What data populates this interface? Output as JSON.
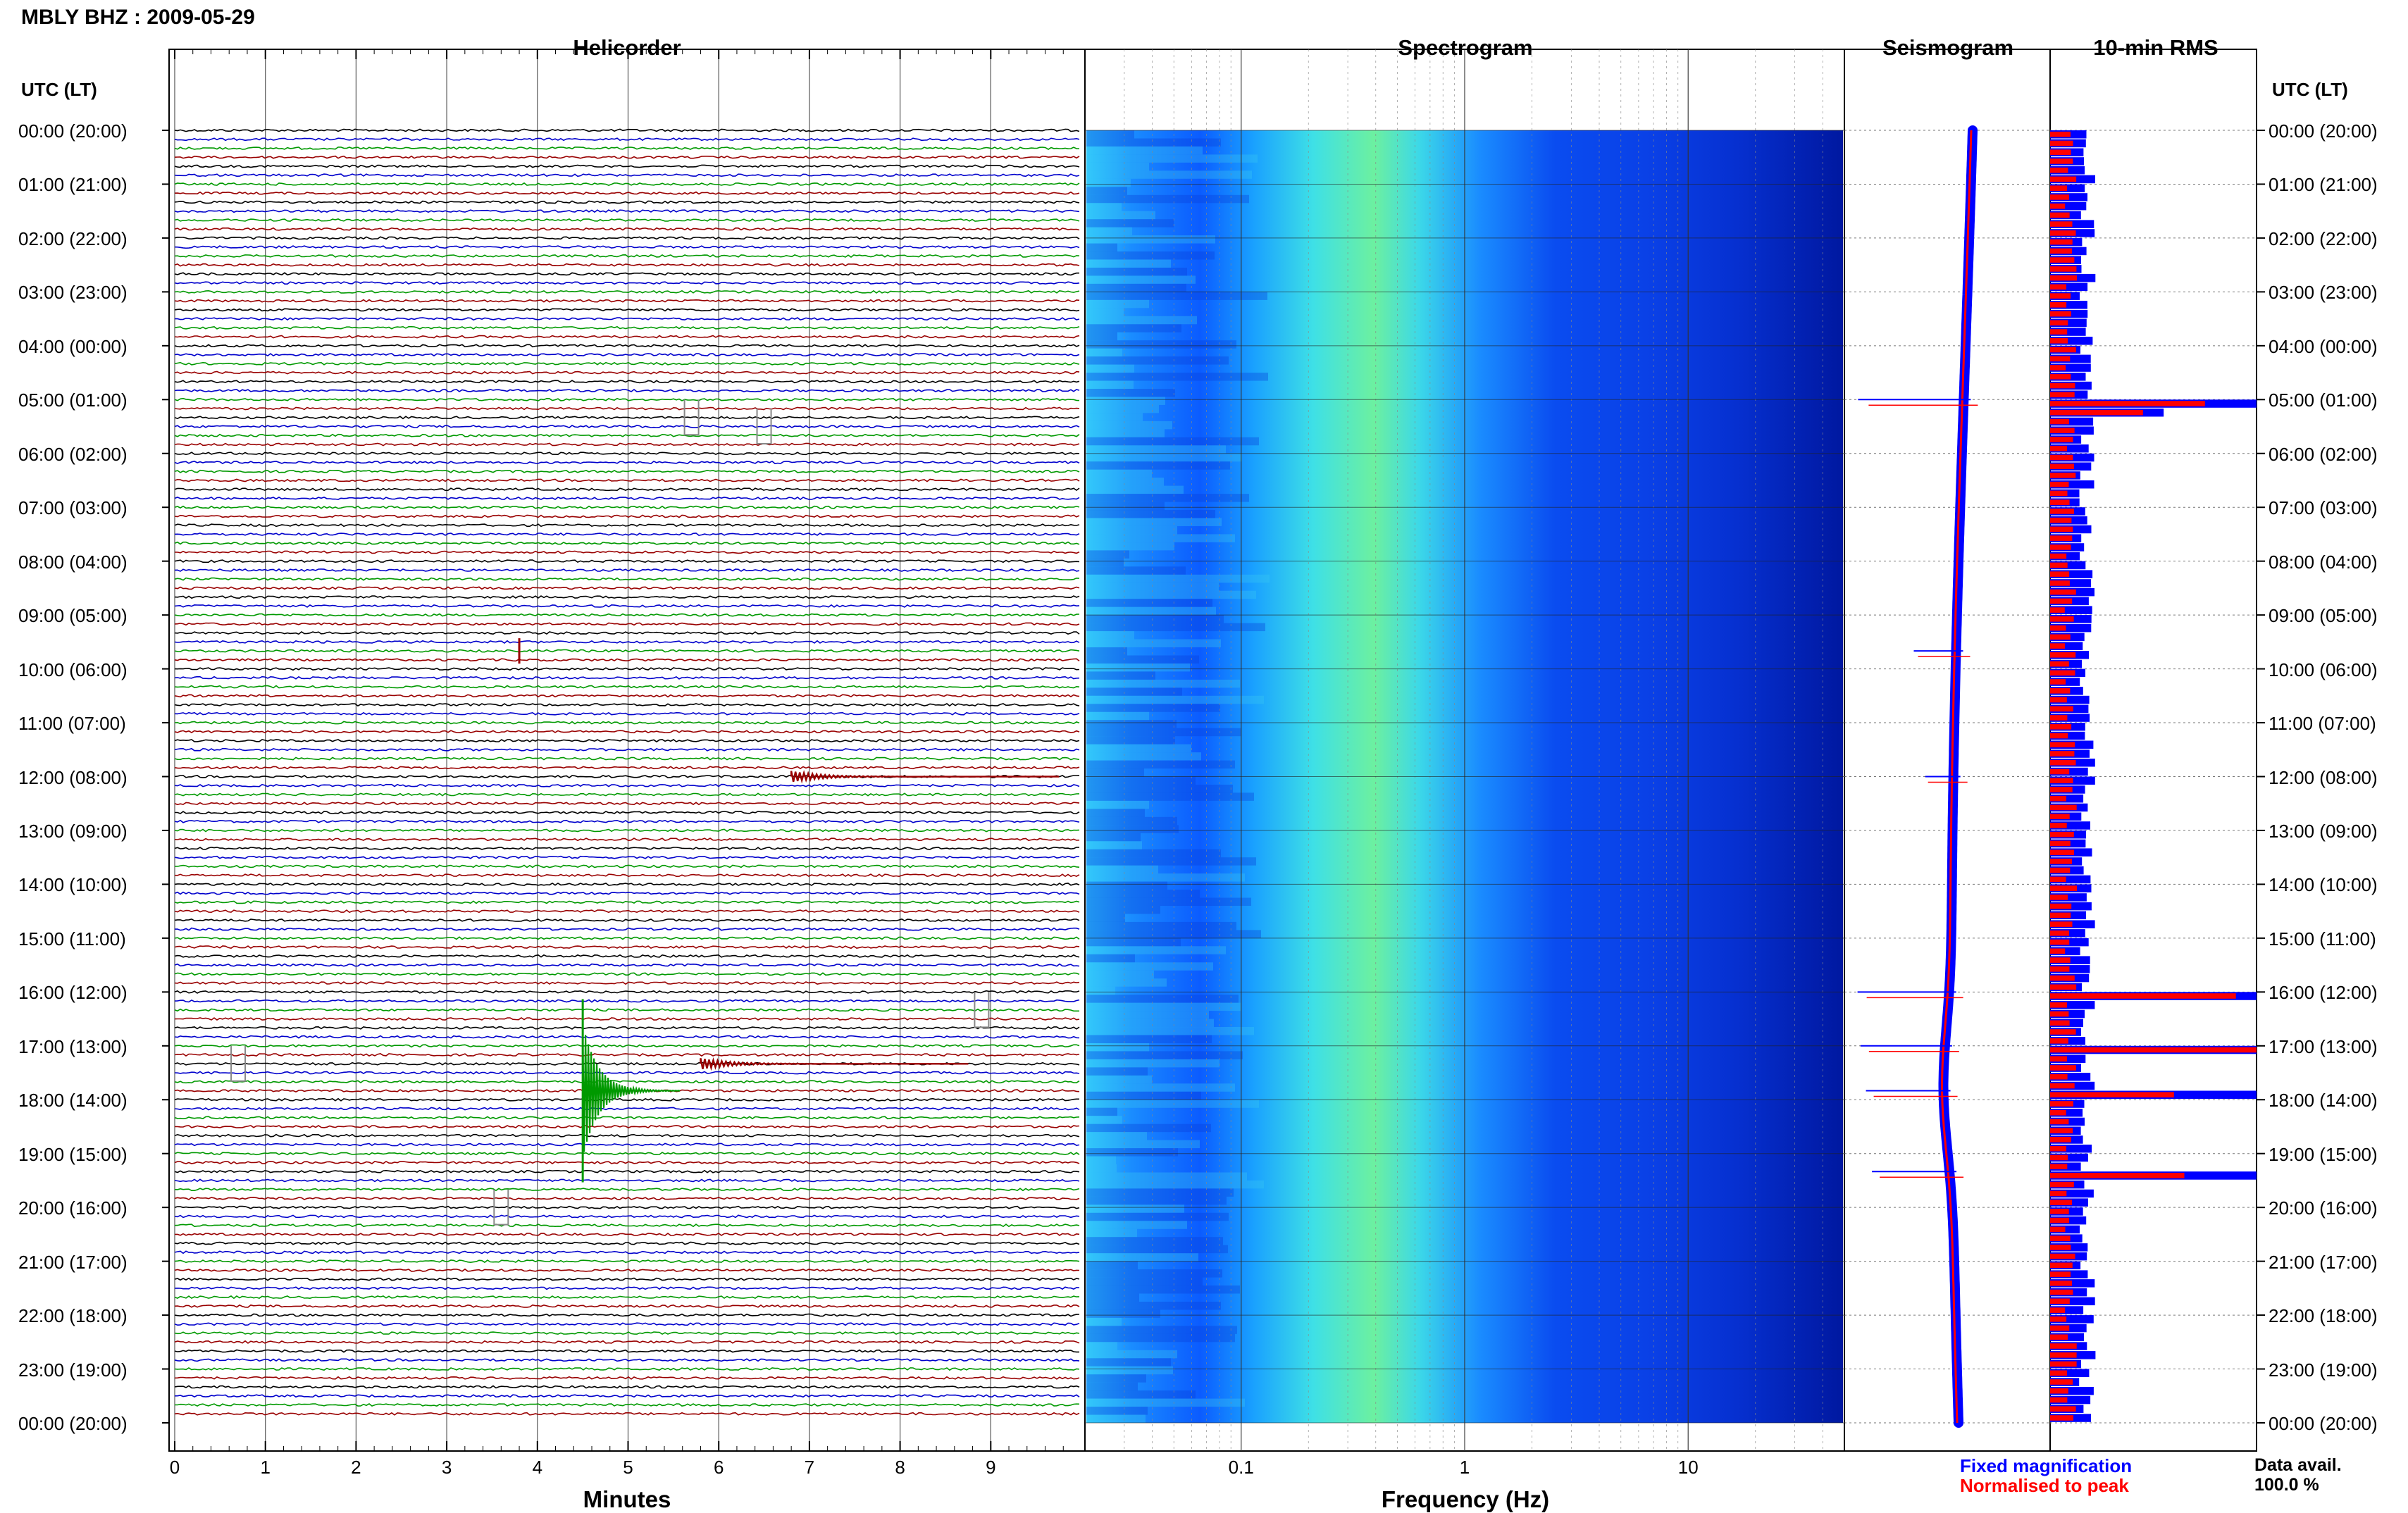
{
  "header": {
    "title": "MBLY BHZ : 2009-05-29"
  },
  "panels": {
    "helicorder": "Helicorder",
    "spectrogram": "Spectrogram",
    "seismogram": "Seismogram",
    "rms": "10-min RMS"
  },
  "time_axis": {
    "header_left": "UTC (LT)",
    "header_right": "UTC (LT)",
    "labels": [
      "00:00 (20:00)",
      "01:00 (21:00)",
      "02:00 (22:00)",
      "03:00 (23:00)",
      "04:00 (00:00)",
      "05:00 (01:00)",
      "06:00 (02:00)",
      "07:00 (03:00)",
      "08:00 (04:00)",
      "09:00 (05:00)",
      "10:00 (06:00)",
      "11:00 (07:00)",
      "12:00 (08:00)",
      "13:00 (09:00)",
      "14:00 (10:00)",
      "15:00 (11:00)",
      "16:00 (12:00)",
      "17:00 (13:00)",
      "18:00 (14:00)",
      "19:00 (15:00)",
      "20:00 (16:00)",
      "21:00 (17:00)",
      "22:00 (18:00)",
      "23:00 (19:00)",
      "00:00 (20:00)"
    ]
  },
  "helicorder_axis": {
    "xlabel": "Minutes",
    "ticks": [
      "0",
      "1",
      "2",
      "3",
      "4",
      "5",
      "6",
      "7",
      "8",
      "9"
    ],
    "trace_colors": [
      "#000000",
      "#0000cc",
      "#009900",
      "#990000"
    ]
  },
  "spectrogram_axis": {
    "xlabel": "Frequency (Hz)",
    "ticks": [
      "0.1",
      "1",
      "10"
    ],
    "scale": "log",
    "colors": [
      "#0000aa",
      "#0040ff",
      "#00a0ff",
      "#00e0e0",
      "#60ff90"
    ]
  },
  "legend": {
    "fixed": "Fixed magnification",
    "fixed_color": "#0000ff",
    "normalised": "Normalised to peak",
    "normalised_color": "#ff0000"
  },
  "data_availability": {
    "label": "Data avail.",
    "value": "100.0 %"
  },
  "chart_data": [
    {
      "type": "line",
      "panel": "Helicorder",
      "xlabel": "Minutes",
      "xlim": [
        0,
        10
      ],
      "row_minutes": 10,
      "events": [
        {
          "utc": "05:00",
          "minute": 5.7,
          "kind": "glitch"
        },
        {
          "utc": "05:10",
          "minute": 6.5,
          "kind": "glitch"
        },
        {
          "utc": "09:40",
          "minute": 3.8,
          "kind": "spike"
        },
        {
          "utc": "12:00",
          "minute": 6.8,
          "kind": "earthquake-small"
        },
        {
          "utc": "16:00",
          "minute": 8.9,
          "kind": "glitch"
        },
        {
          "utc": "17:00",
          "minute": 0.7,
          "kind": "glitch"
        },
        {
          "utc": "17:20",
          "minute": 5.8,
          "kind": "earthquake-small"
        },
        {
          "utc": "17:50",
          "minute": 4.5,
          "kind": "earthquake-large"
        },
        {
          "utc": "19:40",
          "minute": 3.6,
          "kind": "glitch"
        }
      ]
    },
    {
      "type": "heatmap",
      "panel": "Spectrogram",
      "xlabel": "Frequency (Hz)",
      "xscale": "log",
      "xlim": [
        0.02,
        50
      ],
      "peak_band_hz": [
        0.2,
        1.0
      ]
    },
    {
      "type": "line",
      "panel": "Seismogram",
      "series": [
        {
          "name": "Fixed magnification",
          "color": "#0000ff"
        },
        {
          "name": "Normalised to peak",
          "color": "#ff0000"
        }
      ]
    },
    {
      "type": "bar",
      "panel": "10-min RMS",
      "orientation": "horizontal",
      "interval_minutes": 10,
      "peaks": [
        {
          "utc": "05:00",
          "fixed": 1.0,
          "normalised": 0.75
        },
        {
          "utc": "05:10",
          "fixed": 0.55,
          "normalised": 0.45
        },
        {
          "utc": "16:00",
          "fixed": 1.0,
          "normalised": 0.9
        },
        {
          "utc": "17:00",
          "fixed": 1.0,
          "normalised": 1.0
        },
        {
          "utc": "17:50",
          "fixed": 1.0,
          "normalised": 0.6
        },
        {
          "utc": "19:20",
          "fixed": 1.0,
          "normalised": 0.65
        }
      ],
      "baseline": {
        "fixed": 0.18,
        "normalised": 0.1
      }
    }
  ]
}
